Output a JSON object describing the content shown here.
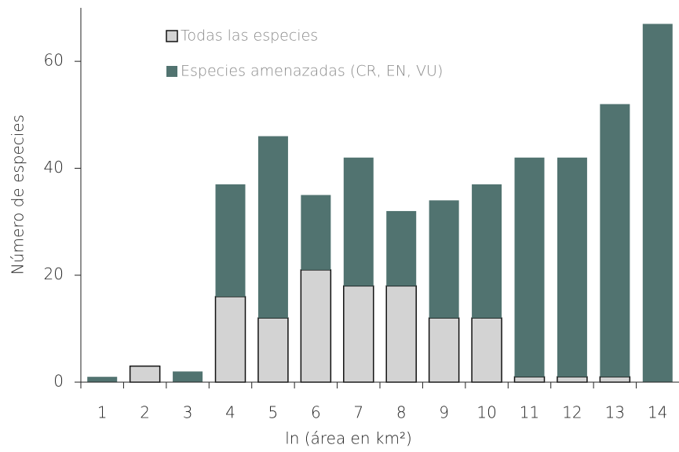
{
  "chart_data": {
    "type": "stacked_bar",
    "x_label": "ln (área en km²)",
    "y_label": "Número de especies",
    "categories": [
      "1",
      "2",
      "3",
      "4",
      "5",
      "6",
      "7",
      "8",
      "9",
      "10",
      "11",
      "12",
      "13",
      "14"
    ],
    "series": [
      {
        "name": "Todas las especies",
        "color": "#d3d3d3",
        "values": [
          0,
          3,
          0,
          16,
          12,
          21,
          18,
          18,
          12,
          12,
          1,
          1,
          1,
          0
        ]
      },
      {
        "name": "Especies amenazadas (CR, EN, VU)",
        "color": "#517370",
        "values": [
          1,
          0,
          2,
          21,
          34,
          14,
          24,
          14,
          22,
          25,
          41,
          41,
          51,
          67
        ]
      }
    ],
    "ylim": [
      0,
      70
    ],
    "yticks": [
      0,
      20,
      40,
      60
    ],
    "grid": false,
    "legend": "top-left"
  }
}
